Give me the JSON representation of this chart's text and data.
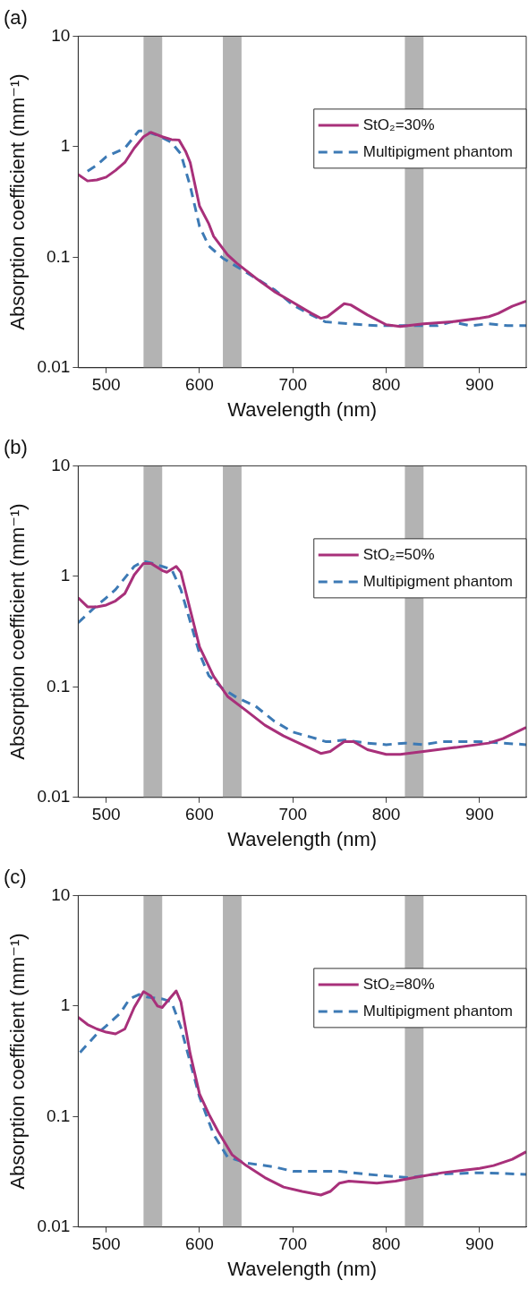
{
  "chart_data": [
    {
      "type": "line",
      "title": "(a)",
      "xlabel": "Wavelength (nm)",
      "ylabel": "Absorption coefficient (mm⁻¹)",
      "log": "y",
      "xlim": [
        470,
        950
      ],
      "xticks": [
        500,
        600,
        700,
        800,
        900
      ],
      "ylim": [
        0.01,
        10
      ],
      "yticks": [
        0.01,
        0.1,
        1,
        10
      ],
      "grid": false,
      "legend": "top right",
      "marker": "none",
      "bands": [
        {
          "axis": "x",
          "from": 540,
          "to": 560,
          "color": "#b3b3b3"
        },
        {
          "axis": "x",
          "from": 625,
          "to": 645,
          "color": "#b3b3b3"
        },
        {
          "axis": "x",
          "from": 820,
          "to": 840,
          "color": "#b3b3b3"
        }
      ],
      "series": [
        {
          "name": "StO₂=30%",
          "color": "#a8307a",
          "line_style": "solid",
          "x": [
            470,
            480,
            490,
            500,
            510,
            520,
            530,
            540,
            548,
            560,
            570,
            578,
            585,
            590,
            600,
            610,
            615,
            630,
            640,
            660,
            680,
            700,
            720,
            730,
            737,
            755,
            762,
            780,
            800,
            815,
            840,
            870,
            900,
            910,
            920,
            935,
            950
          ],
          "values": [
            0.56,
            0.49,
            0.5,
            0.53,
            0.61,
            0.72,
            0.97,
            1.23,
            1.35,
            1.23,
            1.16,
            1.15,
            0.91,
            0.72,
            0.29,
            0.2,
            0.155,
            0.105,
            0.088,
            0.065,
            0.049,
            0.039,
            0.031,
            0.028,
            0.029,
            0.038,
            0.037,
            0.03,
            0.0245,
            0.0236,
            0.025,
            0.026,
            0.028,
            0.029,
            0.031,
            0.036,
            0.04
          ]
        },
        {
          "name": "Multipigment phantom",
          "color": "#3d7ab5",
          "line_style": "dashed",
          "x": [
            480,
            490,
            500,
            520,
            535,
            540,
            555,
            570,
            580,
            590,
            600,
            610,
            625,
            650,
            680,
            700,
            720,
            735,
            760,
            790,
            810,
            840,
            855,
            870,
            890,
            910,
            930,
            950
          ],
          "values": [
            0.6,
            0.68,
            0.81,
            0.97,
            1.39,
            1.39,
            1.27,
            1.09,
            0.86,
            0.44,
            0.19,
            0.126,
            0.098,
            0.073,
            0.051,
            0.037,
            0.03,
            0.026,
            0.025,
            0.024,
            0.024,
            0.024,
            0.024,
            0.026,
            0.024,
            0.025,
            0.024,
            0.024
          ]
        }
      ]
    },
    {
      "type": "line",
      "title": "(b)",
      "xlabel": "Wavelength (nm)",
      "ylabel": "Absorption coefficient (mm⁻¹)",
      "log": "y",
      "xlim": [
        470,
        950
      ],
      "xticks": [
        500,
        600,
        700,
        800,
        900
      ],
      "ylim": [
        0.01,
        10
      ],
      "yticks": [
        0.01,
        0.1,
        1,
        10
      ],
      "grid": false,
      "legend": "top right",
      "marker": "none",
      "bands": [
        {
          "axis": "x",
          "from": 540,
          "to": 560,
          "color": "#b3b3b3"
        },
        {
          "axis": "x",
          "from": 625,
          "to": 645,
          "color": "#b3b3b3"
        },
        {
          "axis": "x",
          "from": 820,
          "to": 840,
          "color": "#b3b3b3"
        }
      ],
      "series": [
        {
          "name": "StO₂=50%",
          "color": "#a8307a",
          "line_style": "solid",
          "x": [
            470,
            480,
            490,
            500,
            510,
            520,
            530,
            540,
            548,
            560,
            565,
            575,
            580,
            590,
            600,
            615,
            630,
            650,
            670,
            690,
            710,
            730,
            740,
            755,
            765,
            780,
            800,
            815,
            840,
            870,
            910,
            925,
            950
          ],
          "values": [
            0.64,
            0.53,
            0.53,
            0.55,
            0.6,
            0.7,
            1.03,
            1.31,
            1.31,
            1.13,
            1.09,
            1.23,
            1.09,
            0.5,
            0.23,
            0.125,
            0.082,
            0.061,
            0.045,
            0.036,
            0.03,
            0.025,
            0.026,
            0.032,
            0.032,
            0.027,
            0.0245,
            0.0245,
            0.026,
            0.028,
            0.031,
            0.034,
            0.043
          ]
        },
        {
          "name": "Multipigment phantom",
          "color": "#3d7ab5",
          "line_style": "dashed",
          "x": [
            470,
            485,
            500,
            510,
            530,
            540,
            550,
            560,
            570,
            580,
            590,
            600,
            610,
            625,
            640,
            660,
            680,
            700,
            720,
            735,
            740,
            755,
            780,
            800,
            820,
            840,
            860,
            900,
            950
          ],
          "values": [
            0.38,
            0.5,
            0.64,
            0.76,
            1.23,
            1.37,
            1.31,
            1.23,
            1.16,
            0.76,
            0.39,
            0.2,
            0.126,
            0.096,
            0.08,
            0.067,
            0.049,
            0.039,
            0.035,
            0.032,
            0.032,
            0.033,
            0.031,
            0.03,
            0.031,
            0.03,
            0.032,
            0.032,
            0.03
          ]
        }
      ]
    },
    {
      "type": "line",
      "title": "(c)",
      "xlabel": "Wavelength (nm)",
      "ylabel": "Absorption coefficient (mm⁻¹)",
      "log": "y",
      "xlim": [
        470,
        950
      ],
      "xticks": [
        500,
        600,
        700,
        800,
        900
      ],
      "ylim": [
        0.01,
        10
      ],
      "yticks": [
        0.01,
        0.1,
        1,
        10
      ],
      "grid": false,
      "legend": "top right",
      "marker": "none",
      "bands": [
        {
          "axis": "x",
          "from": 540,
          "to": 560,
          "color": "#b3b3b3"
        },
        {
          "axis": "x",
          "from": 625,
          "to": 645,
          "color": "#b3b3b3"
        },
        {
          "axis": "x",
          "from": 820,
          "to": 840,
          "color": "#b3b3b3"
        }
      ],
      "series": [
        {
          "name": "StO₂=80%",
          "color": "#a8307a",
          "line_style": "solid",
          "x": [
            470,
            480,
            490,
            500,
            510,
            520,
            530,
            540,
            548,
            555,
            560,
            565,
            575,
            580,
            590,
            600,
            610,
            620,
            635,
            650,
            670,
            690,
            710,
            730,
            740,
            750,
            760,
            790,
            810,
            830,
            860,
            900,
            915,
            935,
            950
          ],
          "values": [
            0.79,
            0.68,
            0.62,
            0.58,
            0.56,
            0.62,
            0.97,
            1.35,
            1.23,
            1.0,
            0.97,
            1.09,
            1.37,
            1.09,
            0.37,
            0.16,
            0.105,
            0.073,
            0.045,
            0.036,
            0.028,
            0.023,
            0.021,
            0.0195,
            0.021,
            0.025,
            0.026,
            0.025,
            0.026,
            0.028,
            0.031,
            0.034,
            0.036,
            0.041,
            0.048
          ]
        },
        {
          "name": "Multipigment phantom",
          "color": "#3d7ab5",
          "line_style": "dashed",
          "x": [
            472,
            490,
            500,
            515,
            525,
            535,
            545,
            560,
            570,
            580,
            590,
            600,
            615,
            630,
            650,
            680,
            700,
            720,
            750,
            780,
            800,
            825,
            850,
            900,
            950
          ],
          "values": [
            0.38,
            0.56,
            0.66,
            0.86,
            1.16,
            1.27,
            1.2,
            1.16,
            1.09,
            0.64,
            0.31,
            0.15,
            0.069,
            0.043,
            0.038,
            0.035,
            0.032,
            0.032,
            0.032,
            0.03,
            0.029,
            0.028,
            0.03,
            0.031,
            0.03
          ]
        }
      ]
    }
  ]
}
